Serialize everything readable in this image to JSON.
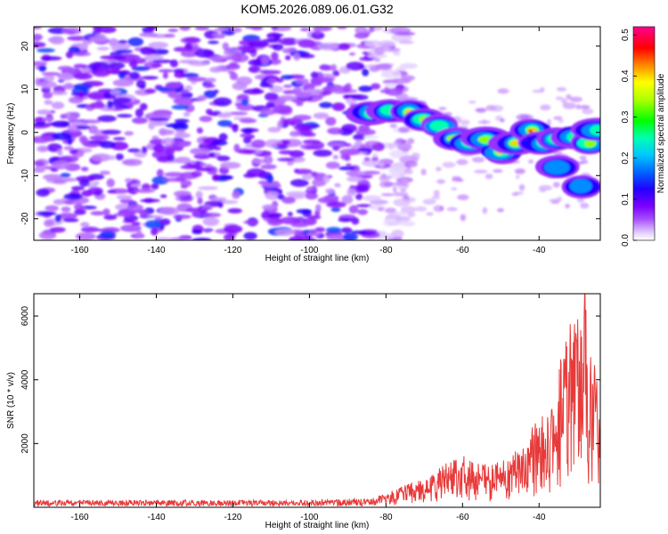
{
  "title": "KOM5.2026.089.06.01.G32",
  "colors": {
    "background": "#ffffff",
    "noise_purple": "#8a2be2",
    "snr_line": "#e83a3a",
    "axis": "#000000"
  },
  "chart_data": [
    {
      "type": "heatmap",
      "title": "KOM5.2026.089.06.01.G32",
      "xlabel": "Height of straight line (km)",
      "ylabel": "Frequency (Hz)",
      "xlim": [
        -172,
        -24
      ],
      "ylim": [
        -25,
        24.5
      ],
      "xticks": [
        -160,
        -140,
        -120,
        -100,
        -80,
        -60,
        -40
      ],
      "yticks": [
        -20,
        -10,
        0,
        10,
        20
      ],
      "colorbar": {
        "label": "Normalized spectral amplitude",
        "range": [
          0,
          0.52
        ],
        "ticks": [
          0.0,
          0.1,
          0.2,
          0.3,
          0.4,
          0.5
        ],
        "colormap": "rainbow (violet-blue-cyan-green-yellow-red-magenta)"
      },
      "noise_region_x": [
        -172,
        -80
      ],
      "signal_track": {
        "description": "meteor head echo Doppler track, frequency decreasing with height",
        "points": [
          {
            "x": -84,
            "y": 4.5,
            "amp": 0.25
          },
          {
            "x": -79,
            "y": 5.0,
            "amp": 0.3
          },
          {
            "x": -74,
            "y": 4.8,
            "amp": 0.45
          },
          {
            "x": -70,
            "y": 3.0,
            "amp": 0.35
          },
          {
            "x": -66,
            "y": 1.5,
            "amp": 0.3
          },
          {
            "x": -62,
            "y": -1.5,
            "amp": 0.4
          },
          {
            "x": -58,
            "y": -2.5,
            "amp": 0.47
          },
          {
            "x": -54,
            "y": -1.5,
            "amp": 0.38
          },
          {
            "x": -50,
            "y": -4.5,
            "amp": 0.45
          },
          {
            "x": -46,
            "y": -2.5,
            "amp": 0.4
          },
          {
            "x": -42,
            "y": 0.5,
            "amp": 0.5
          },
          {
            "x": -39,
            "y": -2.5,
            "amp": 0.45
          },
          {
            "x": -35,
            "y": -1.5,
            "amp": 0.35
          },
          {
            "x": -31,
            "y": -1.0,
            "amp": 0.3
          },
          {
            "x": -27,
            "y": -2.5,
            "amp": 0.35
          },
          {
            "x": -25,
            "y": 0.5,
            "amp": 0.3
          },
          {
            "x": -35,
            "y": -8.0,
            "amp": 0.2
          },
          {
            "x": -29,
            "y": -12.5,
            "amp": 0.2
          }
        ]
      }
    },
    {
      "type": "line",
      "xlabel": "Height of straight line (km)",
      "ylabel": "SNR (10 * v/v)",
      "xlim": [
        -172,
        -24
      ],
      "ylim": [
        0,
        6700
      ],
      "xticks": [
        -160,
        -140,
        -120,
        -100,
        -80,
        -60,
        -40
      ],
      "yticks": [
        2000,
        4000,
        6000
      ],
      "series": [
        {
          "name": "SNR",
          "envelope": {
            "x": [
              -172,
              -100,
              -85,
              -80,
              -75,
              -70,
              -65,
              -60,
              -55,
              -50,
              -45,
              -40,
              -37,
              -34,
              -31,
              -29,
              -27,
              -25,
              -24
            ],
            "y": [
              230,
              230,
              280,
              420,
              750,
              900,
              1350,
              1650,
              1350,
              1450,
              1850,
              2900,
              3250,
              5200,
              6000,
              6700,
              6000,
              4100,
              3500
            ]
          },
          "max_value": 6700,
          "max_x": -28
        }
      ]
    }
  ]
}
